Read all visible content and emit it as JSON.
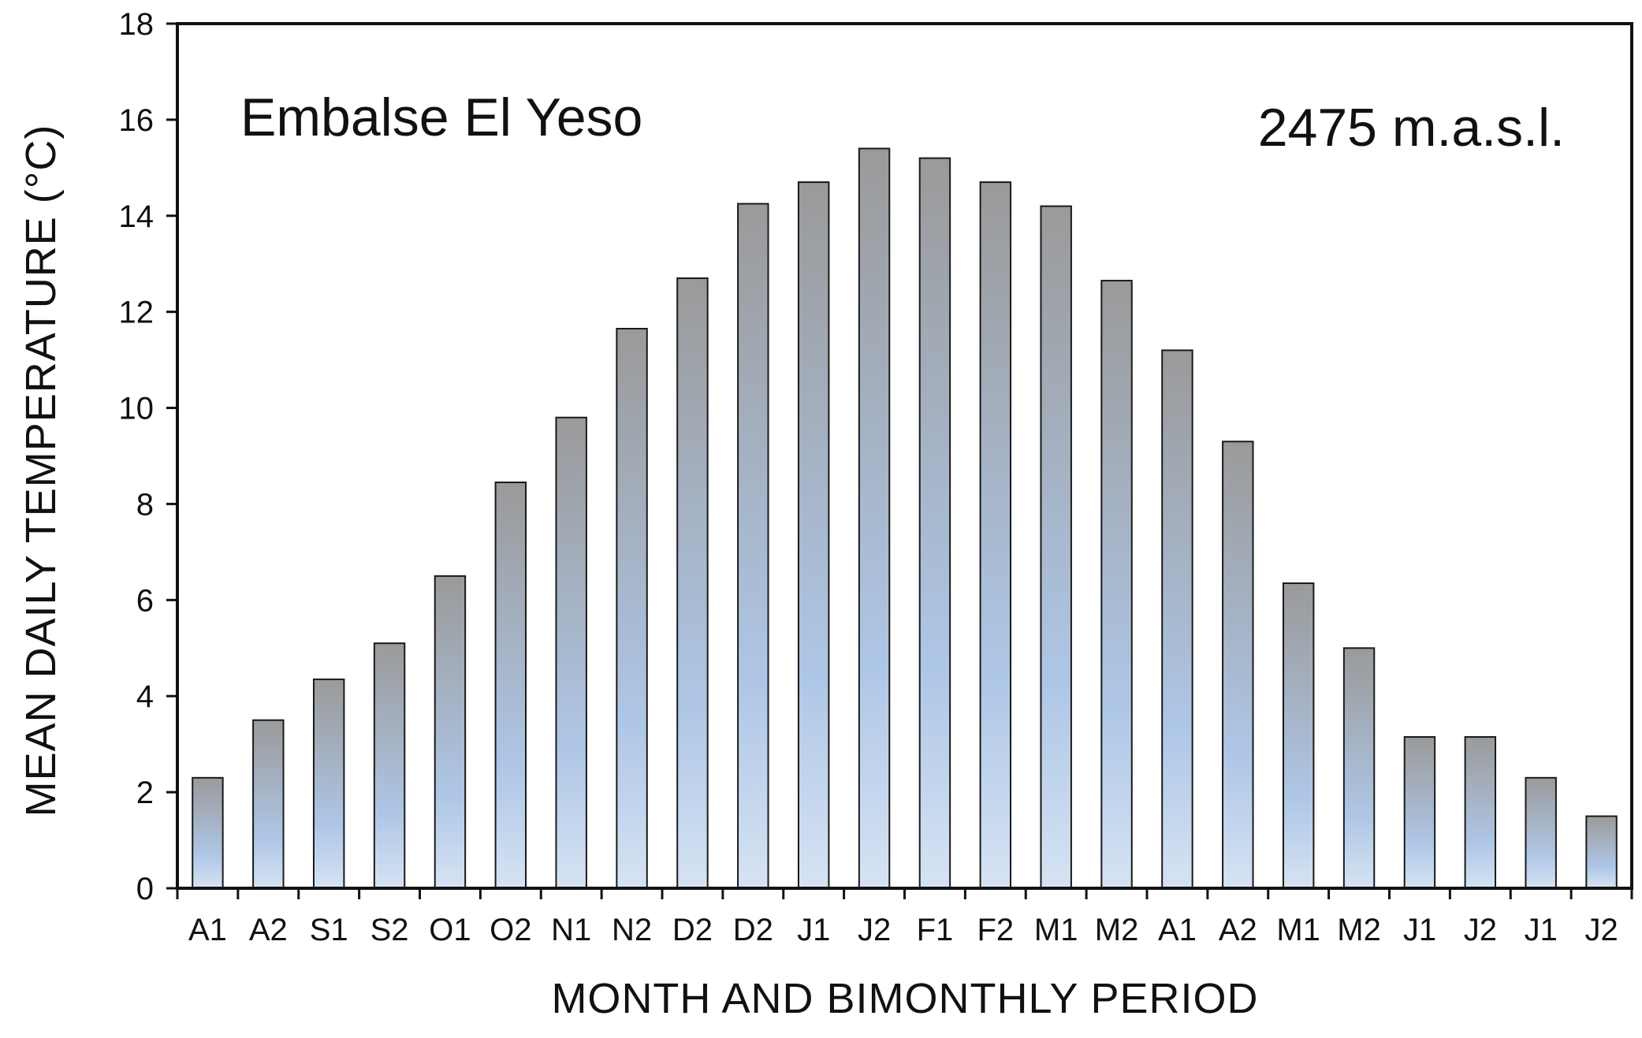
{
  "chart_data": {
    "type": "bar",
    "location_label": "Embalse El Yeso",
    "elevation_label": "2475 m.a.s.l.",
    "xlabel": "MONTH AND BIMONTHLY PERIOD",
    "ylabel": "MEAN DAILY TEMPERATURE  (°C)",
    "ylim": [
      0,
      18
    ],
    "yticks": [
      0,
      2,
      4,
      6,
      8,
      10,
      12,
      14,
      16,
      18
    ],
    "grid": false,
    "categories": [
      "A1",
      "A2",
      "S1",
      "S2",
      "O1",
      "O2",
      "N1",
      "N2",
      "D2",
      "D2",
      "J1",
      "J2",
      "F1",
      "F2",
      "M1",
      "M2",
      "A1",
      "A2",
      "M1",
      "M2",
      "J1",
      "J2",
      "J1",
      "J2"
    ],
    "values": [
      2.3,
      3.5,
      4.35,
      5.1,
      6.5,
      8.45,
      9.8,
      11.65,
      12.7,
      14.25,
      14.7,
      15.4,
      15.2,
      14.7,
      14.2,
      12.65,
      11.2,
      9.3,
      6.35,
      5.0,
      3.15,
      3.15,
      2.3,
      1.5
    ],
    "colors": {
      "bar_top": "#9a9a9a",
      "bar_bottom": "#aec6e6",
      "bar_base": "#d6e3f3",
      "bar_stroke": "#1a1a1a",
      "axis": "#111111"
    }
  }
}
